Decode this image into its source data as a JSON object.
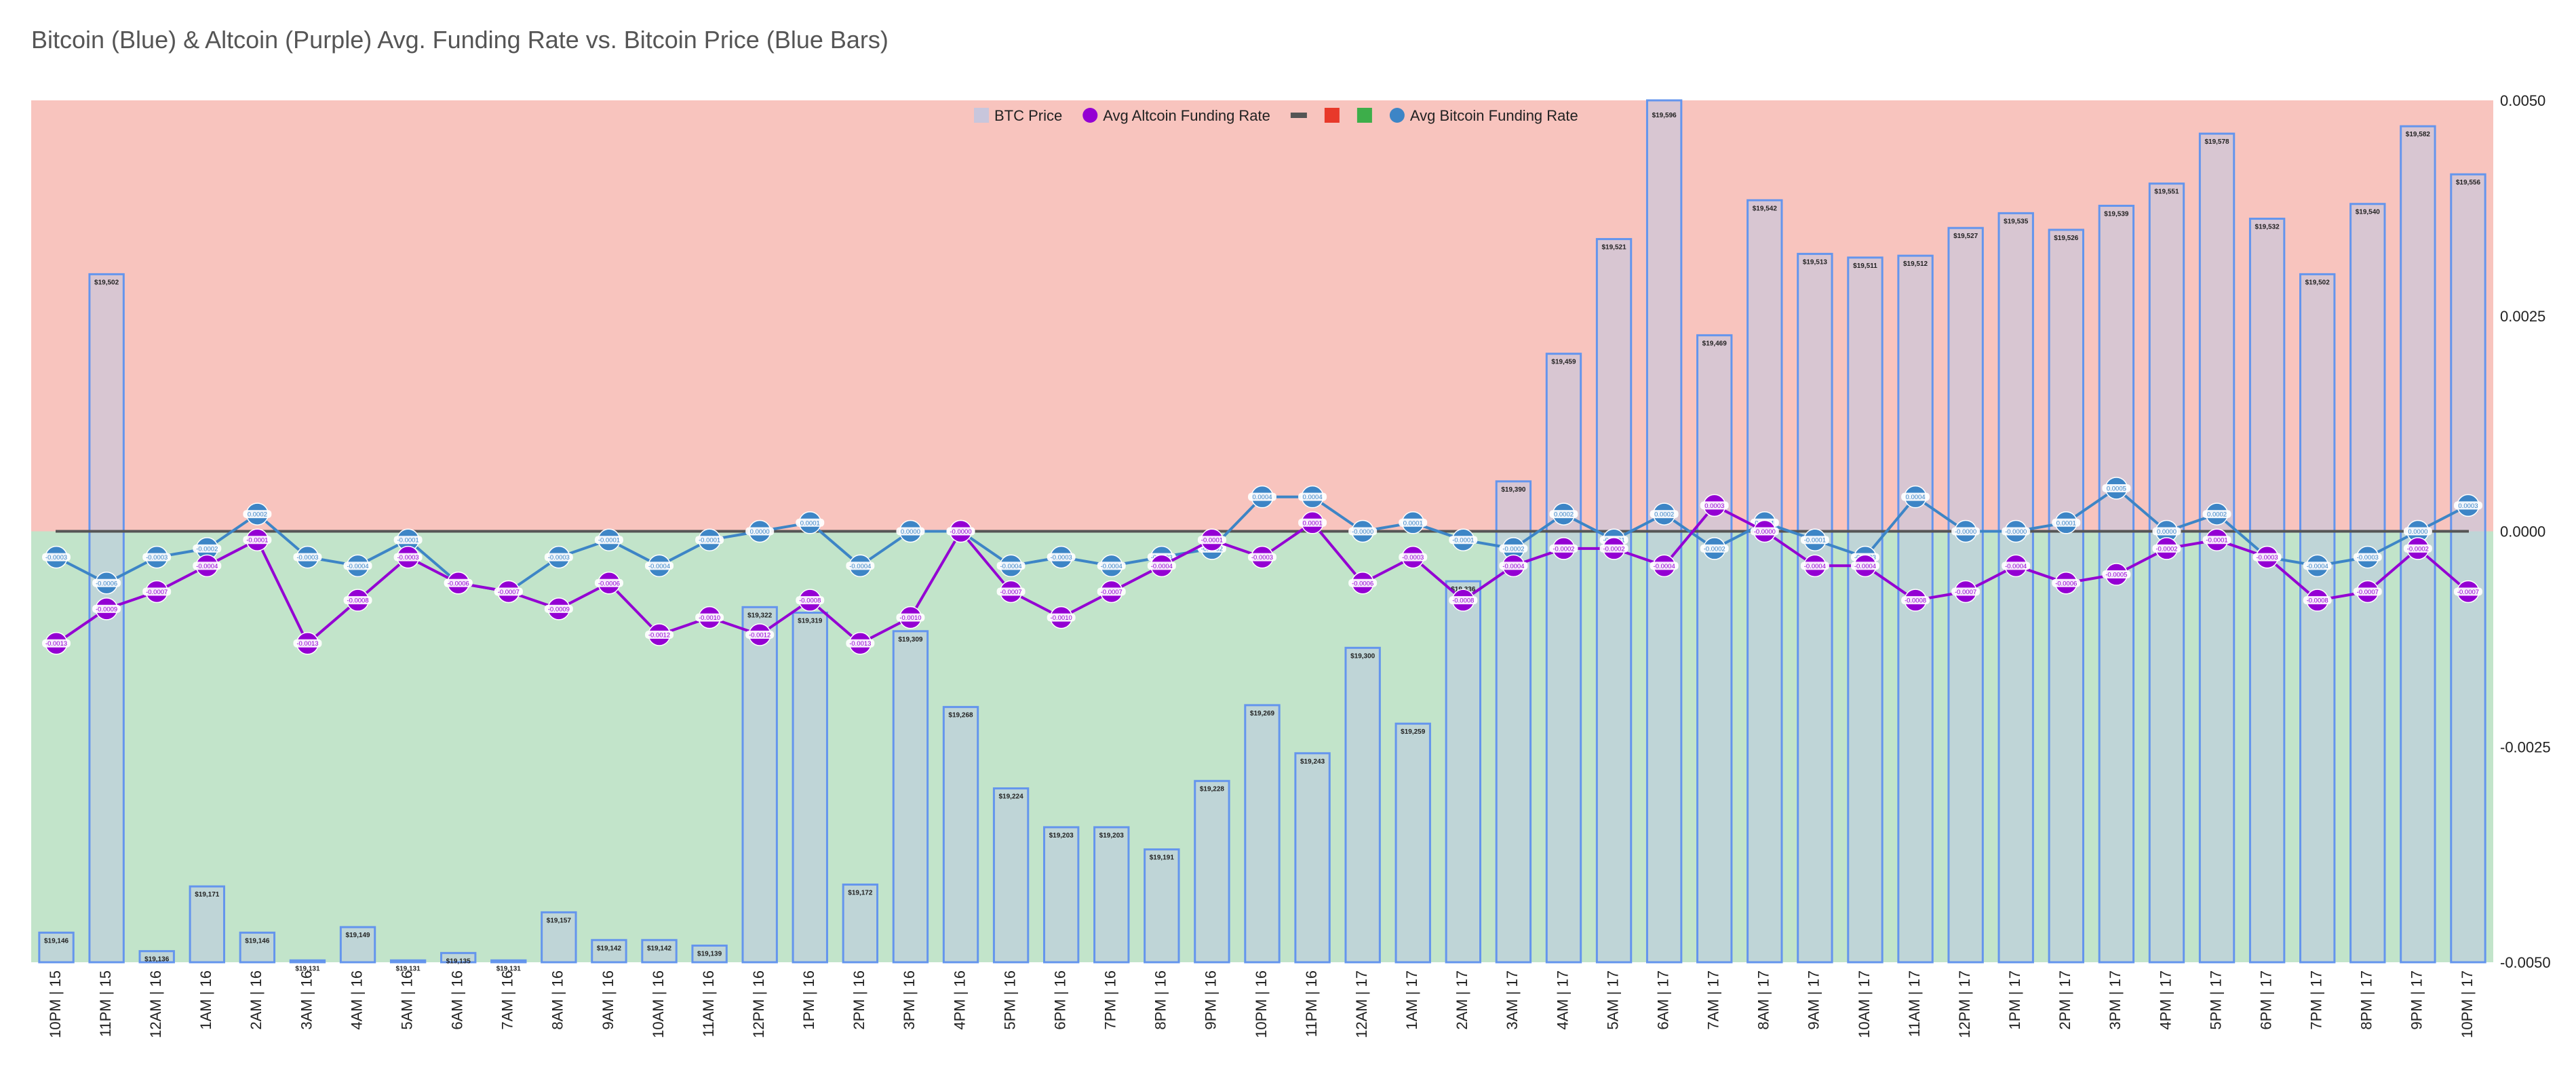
{
  "chart_data": {
    "type": "bar+line",
    "title": "Bitcoin (Blue) & Altcoin (Purple) Avg. Funding Rate vs. Bitcoin Price (Blue Bars)",
    "categories": [
      "10PM | 15",
      "11PM | 15",
      "12AM | 16",
      "1AM | 16",
      "2AM | 16",
      "3AM | 16",
      "4AM | 16",
      "5AM | 16",
      "6AM | 16",
      "7AM | 16",
      "8AM | 16",
      "9AM | 16",
      "10AM | 16",
      "11AM | 16",
      "12PM | 16",
      "1PM | 16",
      "2PM | 16",
      "3PM | 16",
      "4PM | 16",
      "5PM | 16",
      "6PM | 16",
      "7PM | 16",
      "8PM | 16",
      "9PM | 16",
      "10PM | 16",
      "11PM | 16",
      "12AM | 17",
      "1AM | 17",
      "2AM | 17",
      "3AM | 17",
      "4AM | 17",
      "5AM | 17",
      "6AM | 17",
      "7AM | 17",
      "8AM | 17",
      "9AM | 17",
      "10AM | 17",
      "11AM | 17",
      "12PM | 17",
      "1PM | 17",
      "2PM | 17",
      "3PM | 17",
      "4PM | 17",
      "5PM | 17",
      "6PM | 17",
      "7PM | 17",
      "8PM | 17",
      "9PM | 17",
      "10PM | 17"
    ],
    "series": [
      {
        "name": "BTC Price",
        "kind": "bar",
        "color": "#6495ED",
        "values": [
          19146,
          19502,
          19136,
          19171,
          19146,
          19131,
          19149,
          19131,
          19135,
          19131,
          19157,
          19142,
          19142,
          19139,
          19322,
          19319,
          19172,
          19309,
          19268,
          19224,
          19203,
          19203,
          19191,
          19228,
          19269,
          19243,
          19300,
          19259,
          19336,
          19390,
          19459,
          19521,
          19596,
          19469,
          19542,
          19513,
          19511,
          19512,
          19527,
          19535,
          19526,
          19539,
          19551,
          19578,
          19532,
          19502,
          19540,
          19582,
          19556
        ],
        "labels": [
          "$19,146",
          "$19,502",
          "$19,136",
          "$19,171",
          "$19,146",
          "$19,131",
          "$19,149",
          "$19,131",
          "$19,135",
          "$19,131",
          "$19,157",
          "$19,142",
          "$19,142",
          "$19,139",
          "$19,322",
          "$19,319",
          "$19,172",
          "$19,309",
          "$19,268",
          "$19,224",
          "$19,203",
          "$19,203",
          "$19,191",
          "$19,228",
          "$19,269",
          "$19,243",
          "$19,300",
          "$19,259",
          "$19,336",
          "$19,390",
          "$19,459",
          "$19,521",
          "$19,596",
          "$19,469",
          "$19,542",
          "$19,513",
          "$19,511",
          "$19,512",
          "$19,527",
          "$19,535",
          "$19,526",
          "$19,539",
          "$19,551",
          "$19,578",
          "$19,532",
          "$19,502",
          "$19,540",
          "$19,582",
          "$19,556"
        ]
      },
      {
        "name": "Avg Altcoin Funding Rate",
        "kind": "line",
        "color": "#9400D3",
        "values": [
          -0.0013,
          -0.0009,
          -0.0007,
          -0.0004,
          -0.0001,
          -0.0013,
          -0.0008,
          -0.0003,
          -0.0006,
          -0.0007,
          -0.0009,
          -0.0006,
          -0.0012,
          -0.001,
          -0.0012,
          -0.0008,
          -0.0013,
          -0.001,
          -0.0,
          -0.0007,
          -0.001,
          -0.0007,
          -0.0004,
          -0.0001,
          -0.0003,
          0.0001,
          -0.0006,
          -0.0003,
          -0.0008,
          -0.0004,
          -0.0002,
          -0.0002,
          -0.0004,
          0.0003,
          -0.0,
          -0.0004,
          -0.0004,
          -0.0008,
          -0.0007,
          -0.0004,
          -0.0006,
          -0.0005,
          -0.0002,
          -0.0001,
          -0.0003,
          -0.0008,
          -0.0007,
          -0.0002,
          -0.0007
        ],
        "labels": [
          "-0.0013",
          "-0.0009",
          "-0.0007",
          "-0.0004",
          "-0.0001",
          "-0.0013",
          "-0.0008",
          "-0.0003",
          "-0.0006",
          "-0.0007",
          "-0.0009",
          "-0.0006",
          "-0.0012",
          "-0.0010",
          "-0.0012",
          "-0.0008",
          "-0.0013",
          "-0.0010",
          "-0.0000",
          "-0.0007",
          "-0.0010",
          "-0.0007",
          "-0.0004",
          "-0.0001",
          "-0.0003",
          "0.0001",
          "-0.0006",
          "-0.0003",
          "-0.0008",
          "-0.0004",
          "-0.0002",
          "-0.0002",
          "-0.0004",
          "0.0003",
          "-0.0000",
          "-0.0004",
          "-0.0004",
          "-0.0008",
          "-0.0007",
          "-0.0004",
          "-0.0006",
          "-0.0005",
          "-0.0002",
          "-0.0001",
          "-0.0003",
          "-0.0008",
          "-0.0007",
          "-0.0002",
          "-0.0007"
        ]
      },
      {
        "name": "Avg Bitcoin Funding Rate",
        "kind": "line",
        "color": "#3D85C6",
        "values": [
          -0.0003,
          -0.0006,
          -0.0003,
          -0.0002,
          0.0002,
          -0.0003,
          -0.0004,
          -0.0001,
          -0.0006,
          -0.0007,
          -0.0003,
          -0.0001,
          -0.0004,
          -0.0001,
          0.0,
          0.0001,
          -0.0004,
          0.0,
          -0.0,
          -0.0004,
          -0.0003,
          -0.0004,
          -0.0003,
          -0.0002,
          0.0004,
          0.0004,
          -0.0,
          0.0001,
          -0.0001,
          -0.0002,
          0.0002,
          -0.0001,
          0.0002,
          -0.0002,
          0.0001,
          -0.0001,
          -0.0003,
          0.0004,
          -0.0,
          -0.0,
          0.0001,
          0.0005,
          0.0,
          0.0002,
          -0.0003,
          -0.0004,
          -0.0003,
          0.0,
          0.0003
        ],
        "labels": [
          "-0.0003",
          "-0.0006",
          "-0.0003",
          "-0.0002",
          "0.0002",
          "-0.0003",
          "-0.0004",
          "-0.0001",
          "-0.0006",
          "-0.0007",
          "-0.0003",
          "-0.0001",
          "-0.0004",
          "-0.0001",
          "0.0000",
          "0.0001",
          "-0.0004",
          "0.0000",
          "-0.0000",
          "-0.0004",
          "-0.0003",
          "-0.0004",
          "-0.0003",
          "-0.0002",
          "0.0004",
          "0.0004",
          "-0.0000",
          "0.0001",
          "-0.0001",
          "-0.0002",
          "0.0002",
          "-0.0001",
          "0.0002",
          "-0.0002",
          "0.0001",
          "-0.0001",
          "-0.0003",
          "0.0004",
          "-0.0000",
          "-0.0000",
          "0.0001",
          "0.0005",
          "0.0000",
          "0.0002",
          "-0.0003",
          "-0.0004",
          "-0.0003",
          "0.0000",
          "0.0003"
        ]
      }
    ],
    "y2_range": [
      19130,
      19596
    ],
    "y_right": {
      "range": [
        -0.005,
        0.005
      ],
      "ticks": [
        0.005,
        0.0025,
        0.0,
        -0.0025,
        -0.005
      ],
      "tick_labels": [
        "0.0050",
        "0.0025",
        "0.0000",
        "-0.0025",
        "-0.0050"
      ]
    },
    "legend": {
      "position": "top-center",
      "items": [
        {
          "label": "BTC Price",
          "symbol": "square",
          "color": "#C8C6DC"
        },
        {
          "label": "Avg Altcoin Funding Rate",
          "symbol": "circle",
          "color": "#9400D3"
        },
        {
          "label": "",
          "symbol": "line",
          "color": "#555555"
        },
        {
          "label": "",
          "symbol": "square",
          "color": "#E8392A"
        },
        {
          "label": "",
          "symbol": "square",
          "color": "#3DAE4A"
        },
        {
          "label": "Avg Bitcoin Funding Rate",
          "symbol": "circle",
          "color": "#3D85C6"
        }
      ]
    },
    "background": {
      "positive_color": "#F8C4BE",
      "negative_color": "#C2E4CA"
    },
    "zero_line_color": "#555555",
    "grid": false
  }
}
